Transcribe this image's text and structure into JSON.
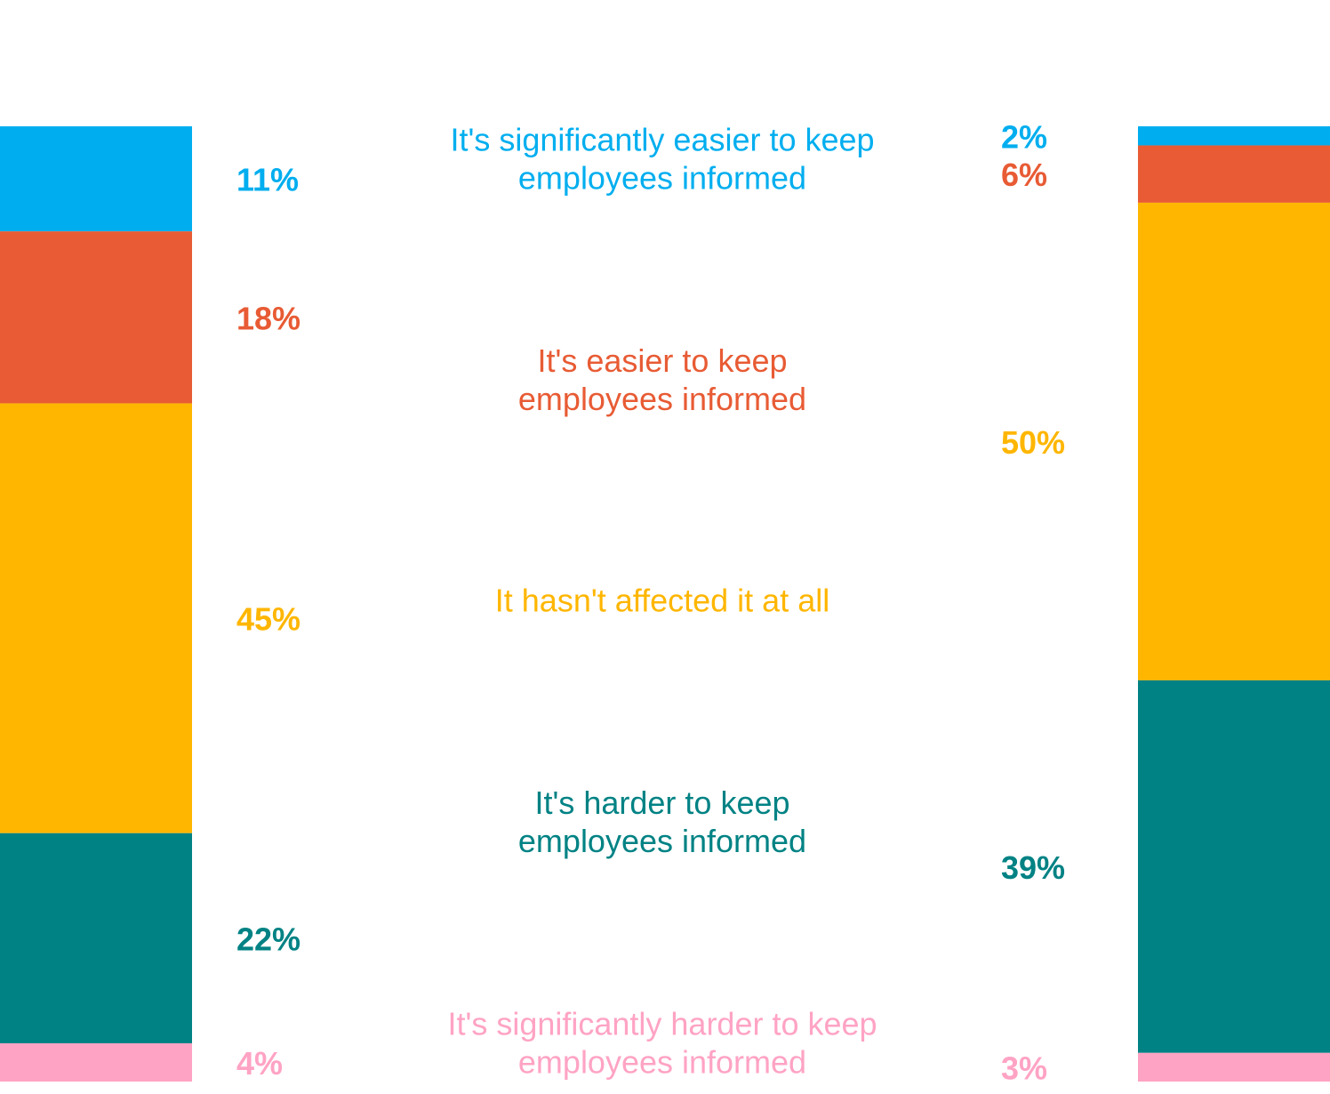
{
  "chart_data": {
    "type": "stacked-bar-pair",
    "categories": [
      "It's significantly easier to keep employees informed",
      "It's easier to keep employees informed",
      "It hasn't affected it at all",
      "It's harder to keep employees informed",
      "It's significantly harder to keep employees informed"
    ],
    "colors": [
      "#00aeef",
      "#e85b34",
      "#ffb600",
      "#008284",
      "#ffa3c4"
    ],
    "ylim": [
      0,
      100
    ],
    "series": [
      {
        "values": [
          11,
          18,
          45,
          22,
          4
        ],
        "value_labels": [
          "11%",
          "18%",
          "45%",
          "22%",
          "4%"
        ]
      },
      {
        "values": [
          2,
          6,
          50,
          39,
          3
        ],
        "value_labels": [
          "2%",
          "6%",
          "50%",
          "39%",
          "3%"
        ]
      }
    ]
  }
}
